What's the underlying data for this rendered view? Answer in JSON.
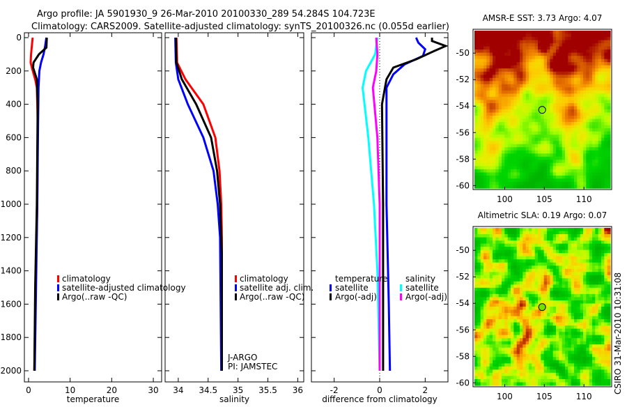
{
  "title_line1": "Argo profile: JA 5901930_9 26-Mar-2010 20100330_289 54.284S 104.723E",
  "title_line2": "Climatology: CARS2009. Satellite-adjusted climatology: synTS_20100326.nc (0.055d earlier)",
  "side_label": "CSIRO 31-Mar-2010 10:31:08",
  "colors": {
    "red": "#ff0000",
    "blue": "#0000ff",
    "black": "#000000",
    "cyan": "#00ffff",
    "magenta": "#ff00ff"
  },
  "chart_data": [
    {
      "type": "line",
      "xlabel": "temperature",
      "ylabel": "",
      "xlim": [
        -1,
        32
      ],
      "ylim": [
        2000,
        0
      ],
      "xticks": [
        "0",
        "10",
        "20",
        "30"
      ],
      "yticks": [
        "0",
        "200",
        "400",
        "600",
        "800",
        "1000",
        "1200",
        "1400",
        "1600",
        "1800",
        "2000"
      ],
      "legend": [
        "climatology",
        "satellite-adjusted climatology",
        "Argo(..raw -QC)"
      ],
      "series": [
        {
          "name": "climatology",
          "color": "red",
          "depth": [
            0,
            50,
            100,
            150,
            180,
            250,
            300,
            500,
            1000,
            1500,
            2000
          ],
          "values": [
            1.0,
            0.8,
            0.6,
            0.5,
            0.8,
            1.6,
            2.0,
            2.2,
            2.1,
            1.7,
            1.4
          ]
        },
        {
          "name": "satellite-adjusted climatology",
          "color": "blue",
          "depth": [
            0,
            50,
            100,
            150,
            200,
            300,
            500,
            1000,
            1500,
            2000
          ],
          "values": [
            4.3,
            4.0,
            3.6,
            3.0,
            2.6,
            2.4,
            2.3,
            2.1,
            1.8,
            1.5
          ]
        },
        {
          "name": "Argo(..raw -QC)",
          "color": "black",
          "depth": [
            0,
            60,
            100,
            150,
            180,
            250,
            400,
            1000,
            1500,
            2000
          ],
          "values": [
            4.4,
            4.3,
            2.5,
            1.2,
            1.1,
            2.0,
            2.2,
            2.0,
            1.6,
            1.4
          ]
        }
      ]
    },
    {
      "type": "line",
      "xlabel": "salinity",
      "xlim": [
        33.78,
        36.1
      ],
      "ylim": [
        2000,
        0
      ],
      "xticks": [
        "34",
        "34.5",
        "35",
        "35.5",
        "36"
      ],
      "legend": [
        "climatology",
        "satellite adj. clim.",
        "Argo(..raw -QC)"
      ],
      "annotation": [
        "J-ARGO",
        "PI: JAMSTEC"
      ],
      "series": [
        {
          "name": "climatology",
          "color": "red",
          "depth": [
            0,
            150,
            250,
            400,
            600,
            800,
            1000,
            1200,
            2000
          ],
          "values": [
            33.97,
            33.98,
            34.12,
            34.42,
            34.62,
            34.69,
            34.72,
            34.73,
            34.73
          ]
        },
        {
          "name": "satellite adj. clim.",
          "color": "blue",
          "depth": [
            0,
            150,
            250,
            400,
            600,
            800,
            1000,
            1200,
            2000
          ],
          "values": [
            33.95,
            33.96,
            34.0,
            34.16,
            34.42,
            34.59,
            34.66,
            34.7,
            34.72
          ]
        },
        {
          "name": "Argo(..raw -QC)",
          "color": "black",
          "depth": [
            0,
            150,
            250,
            400,
            600,
            800,
            1000,
            1300,
            2000
          ],
          "values": [
            33.96,
            33.97,
            34.06,
            34.3,
            34.55,
            34.65,
            34.7,
            34.73,
            34.73
          ]
        }
      ]
    },
    {
      "type": "line",
      "xlabel": "difference from climatology",
      "xlim": [
        -3,
        3
      ],
      "ylim": [
        2000,
        0
      ],
      "xticks": [
        "-2",
        "0",
        "2"
      ],
      "legend_temperature": {
        "title": "temperature",
        "items": [
          "satellite",
          "Argo(-adj)"
        ]
      },
      "legend_salinity": {
        "title": "salinity",
        "items": [
          "satellite",
          "Argo(-adj)"
        ]
      },
      "series": [
        {
          "name": "temperature satellite",
          "color": "blue",
          "depth": [
            0,
            30,
            70,
            110,
            160,
            220,
            300,
            600,
            1000,
            1600,
            2000
          ],
          "values": [
            1.6,
            1.7,
            2.0,
            1.9,
            1.1,
            0.6,
            0.3,
            0.3,
            0.3,
            0.4,
            0.45
          ]
        },
        {
          "name": "temperature Argo(-adj)",
          "color": "black",
          "depth": [
            0,
            20,
            50,
            80,
            130,
            180,
            250,
            400,
            1000,
            2000
          ],
          "values": [
            2.3,
            2.3,
            2.9,
            2.4,
            1.6,
            0.6,
            0.3,
            0.1,
            0.15,
            0.15
          ]
        },
        {
          "name": "salinity satellite",
          "color": "cyan",
          "depth": [
            0,
            100,
            200,
            300,
            600,
            1000,
            1400,
            2000
          ],
          "values": [
            -0.1,
            -0.2,
            -0.6,
            -0.75,
            -0.5,
            -0.25,
            -0.1,
            0.0
          ]
        },
        {
          "name": "salinity Argo(-adj)",
          "color": "magenta",
          "depth": [
            0,
            100,
            200,
            300,
            600,
            1000,
            2000
          ],
          "values": [
            -0.15,
            -0.1,
            -0.15,
            -0.3,
            -0.1,
            0.0,
            0.0
          ]
        }
      ]
    },
    {
      "type": "heatmap",
      "title": "AMSR-E SST: 3.73 Argo: 4.07",
      "xlim": [
        96,
        113.5
      ],
      "ylim": [
        -60.3,
        -48.2
      ],
      "xticks": [
        "100",
        "105",
        "110"
      ],
      "yticks": [
        "-50",
        "-52",
        "-54",
        "-56",
        "-58",
        "-60"
      ],
      "marker": {
        "lon": 104.723,
        "lat": -54.284
      }
    },
    {
      "type": "heatmap",
      "title": "Altimetric SLA: 0.19 Argo: 0.07",
      "xlim": [
        96,
        113.5
      ],
      "ylim": [
        -60.3,
        -48.2
      ],
      "xticks": [
        "100",
        "105",
        "110"
      ],
      "yticks": [
        "-50",
        "-52",
        "-54",
        "-56",
        "-58",
        "-60"
      ],
      "marker": {
        "lon": 104.723,
        "lat": -54.284
      }
    }
  ]
}
